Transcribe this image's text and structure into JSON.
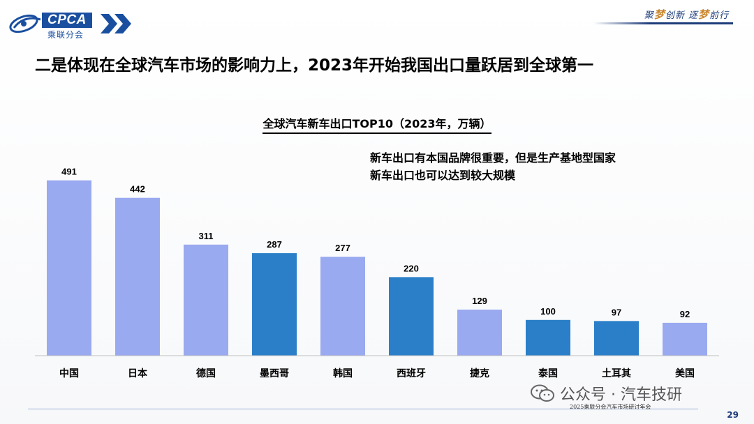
{
  "header": {
    "logo_text": "CPCA",
    "logo_text_cn": "乘联分会",
    "slogan_parts": [
      "聚",
      "梦",
      "创新 逐",
      "梦",
      "前行"
    ]
  },
  "headline": "二是体现在全球汽车市场的影响力上，2023年开始我国出口量跃居到全球第一",
  "note_lines": [
    "新车出口有本国品牌很重要，但是生产基地型国家",
    "新车出口也可以达到较大规模"
  ],
  "chart_data": {
    "type": "bar",
    "title": "全球汽车新车出口TOP10（2023年，万辆）",
    "categories": [
      "中国",
      "日本",
      "德国",
      "墨西哥",
      "韩国",
      "西班牙",
      "捷克",
      "泰国",
      "土耳其",
      "美国"
    ],
    "values": [
      491,
      442,
      311,
      287,
      277,
      220,
      129,
      100,
      97,
      92
    ],
    "highlight": [
      false,
      false,
      false,
      true,
      false,
      true,
      false,
      true,
      true,
      false
    ],
    "colors": {
      "default": "#9aaaf0",
      "highlight": "#2a7fc8"
    },
    "ylim": [
      0,
      500
    ],
    "xlabel": "",
    "ylabel": "",
    "grid": false,
    "data_labels": true
  },
  "footer": {
    "watermark": "公众号 · 汽车技研",
    "event": "2025乘联分会汽车市场研讨年会",
    "page_number": "29"
  }
}
